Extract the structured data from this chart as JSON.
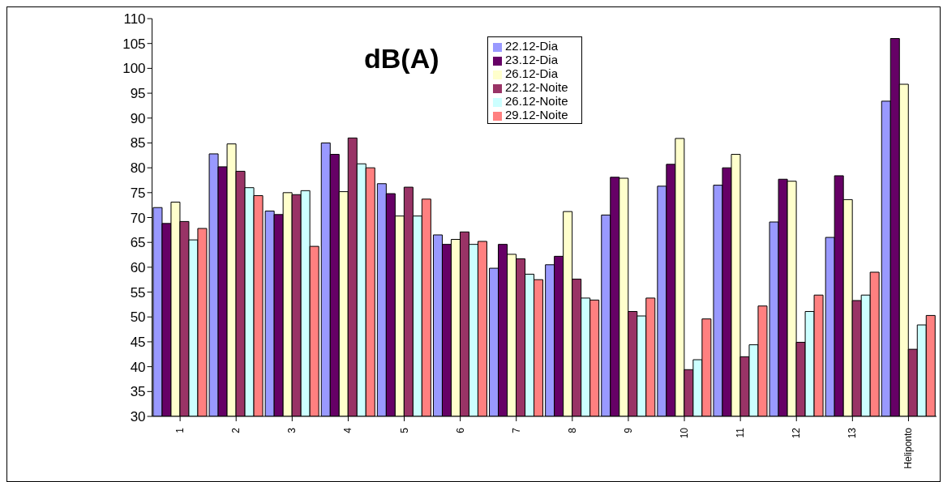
{
  "chart_data": {
    "type": "bar",
    "title": "dB(A)",
    "categories": [
      "1",
      "2",
      "3",
      "4",
      "5",
      "6",
      "7",
      "8",
      "9",
      "10",
      "11",
      "12",
      "13",
      "Heliponto"
    ],
    "series": [
      {
        "name": "22.12-Dia",
        "color": "#9999ff",
        "values": [
          72,
          82.8,
          71.3,
          85,
          76.8,
          66.5,
          59.8,
          60.5,
          70.5,
          76.3,
          76.5,
          69.1,
          66,
          93.4
        ]
      },
      {
        "name": "23.12-Dia",
        "color": "#660066",
        "values": [
          68.8,
          80.2,
          70.6,
          82.7,
          74.8,
          64.6,
          64.6,
          62.2,
          78.1,
          80.7,
          80,
          77.7,
          78.4,
          106
        ]
      },
      {
        "name": "26.12-Dia",
        "color": "#ffffcc",
        "values": [
          73.1,
          84.8,
          75,
          75.2,
          70.3,
          65.6,
          62.6,
          71.2,
          77.9,
          85.9,
          82.7,
          77.3,
          73.6,
          96.8
        ]
      },
      {
        "name": "22.12-Noite",
        "color": "#993366",
        "values": [
          69.2,
          79.3,
          74.6,
          86,
          76.1,
          67.1,
          61.7,
          57.6,
          51.1,
          39.4,
          42,
          44.9,
          53.3,
          43.5
        ]
      },
      {
        "name": "26.12-Noite",
        "color": "#ccffff",
        "values": [
          65.5,
          76,
          75.4,
          80.8,
          70.3,
          64.6,
          58.6,
          53.8,
          50.2,
          41.4,
          44.4,
          51.1,
          54.4,
          48.4
        ]
      },
      {
        "name": "29.12-Noite",
        "color": "#ff8080",
        "values": [
          67.8,
          74.4,
          64.2,
          80,
          73.7,
          65.2,
          57.5,
          53.4,
          53.8,
          49.6,
          52.2,
          54.4,
          59,
          50.3
        ]
      }
    ],
    "ylim": [
      30,
      110
    ],
    "yticks": [
      30,
      35,
      40,
      45,
      50,
      55,
      60,
      65,
      70,
      75,
      80,
      85,
      90,
      95,
      100,
      105,
      110
    ],
    "grid": false,
    "legend": "top"
  }
}
